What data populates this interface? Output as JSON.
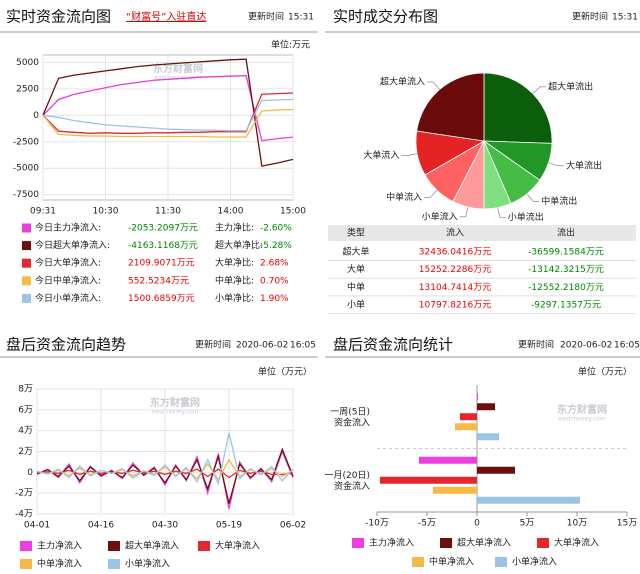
{
  "chart_data": [
    {
      "type": "line",
      "title": "实时资金流向图",
      "link": "“财富号”入驻直达",
      "update_label": "更新时间",
      "update_time": "15:31",
      "unit": "单位:万元",
      "watermark": "东方财富网",
      "watermark_sub": "eastmoney.com",
      "categories": [
        "09:31",
        null,
        null,
        null,
        "10:30",
        null,
        null,
        null,
        "11:30",
        null,
        null,
        null,
        "14:00",
        null,
        null,
        null,
        "15:00"
      ],
      "ylim": [
        -8000,
        5700
      ],
      "yticks": [
        5000,
        2500,
        0,
        -2500,
        -5000,
        -7500
      ],
      "grid": true,
      "series": [
        {
          "name": "今日主力净流入:",
          "color": "#e83fd6",
          "values": [
            0,
            1500,
            2000,
            2300,
            2600,
            2900,
            3100,
            3300,
            3400,
            3500,
            3600,
            3650,
            3700,
            3750,
            -2400,
            -2200,
            -2053
          ]
        },
        {
          "name": "今日超大单净流入:",
          "color": "#6b0f0f",
          "values": [
            0,
            3500,
            3800,
            4000,
            4200,
            4400,
            4600,
            4750,
            4850,
            4950,
            5050,
            5150,
            5250,
            5300,
            -4800,
            -4500,
            -4163
          ]
        },
        {
          "name": "今日大单净流入:",
          "color": "#e4272c",
          "values": [
            0,
            -1500,
            -1600,
            -1700,
            -1650,
            -1700,
            -1700,
            -1650,
            -1650,
            -1600,
            -1600,
            -1550,
            -1550,
            -1550,
            2000,
            2050,
            2109
          ]
        },
        {
          "name": "今日中单净流入:",
          "color": "#f5b945",
          "values": [
            0,
            -1800,
            -1900,
            -1950,
            -1950,
            -2000,
            -2000,
            -2000,
            -2000,
            -2000,
            -2000,
            -2050,
            -2050,
            -2050,
            400,
            500,
            552
          ]
        },
        {
          "name": "今日小单净流入:",
          "color": "#9dc3e6",
          "values": [
            0,
            -200,
            -500,
            -700,
            -900,
            -1000,
            -1100,
            -1200,
            -1300,
            -1350,
            -1400,
            -1400,
            -1450,
            -1450,
            1400,
            1450,
            1500
          ]
        }
      ],
      "summary": [
        {
          "value": "-2053.2097万元",
          "ratio_label": "主力净比:",
          "ratio": "-2.60%"
        },
        {
          "value": "-4163.1168万元",
          "ratio_label": "超大单净比:",
          "ratio": "-5.28%"
        },
        {
          "value": "2109.9071万元",
          "ratio_label": "大单净比:",
          "ratio": "2.68%"
        },
        {
          "value": "552.5234万元",
          "ratio_label": "中单净比:",
          "ratio": "0.70%"
        },
        {
          "value": "1500.6859万元",
          "ratio_label": "小单净比:",
          "ratio": "1.90%"
        }
      ]
    },
    {
      "type": "pie",
      "title": "实时成交分布图",
      "update_label": "更新时间",
      "update_time": "15:31",
      "categories": [
        "超大单流出",
        "大单流出",
        "中单流出",
        "小单流出",
        "小单流入",
        "中单流入",
        "大单流入",
        "超大单流入"
      ],
      "values": [
        36599.1584,
        13142.3215,
        12552.218,
        9297.1357,
        10797.8216,
        13104.7414,
        15252.2286,
        32436.0416
      ],
      "colors": [
        "#0b5e0b",
        "#23962a",
        "#45bd45",
        "#7fe07f",
        "#ff9a9a",
        "#ff6060",
        "#e42424",
        "#6b0a0a"
      ],
      "table": {
        "header": [
          "类型",
          "流入",
          "流出"
        ],
        "rows": [
          [
            "超大单",
            "32436.0416万元",
            "-36599.1584万元"
          ],
          [
            "大单",
            "15252.2286万元",
            "-13142.3215万元"
          ],
          [
            "中单",
            "13104.7414万元",
            "-12552.2180万元"
          ],
          [
            "小单",
            "10797.8216万元",
            "-9297.1357万元"
          ]
        ]
      }
    },
    {
      "type": "line",
      "title": "盘后资金流向趋势",
      "update_label": "更新时间",
      "update_date": "2020-06-02",
      "update_time": "16:05",
      "unit": "单位（万元）",
      "watermark": "东方财富网",
      "watermark_sub": "eastmoney.com",
      "categories": [
        "04-01",
        null,
        null,
        null,
        null,
        null,
        "04-16",
        null,
        null,
        null,
        null,
        null,
        "04-30",
        null,
        null,
        null,
        null,
        null,
        "05-19",
        null,
        null,
        null,
        null,
        null,
        "06-02"
      ],
      "ylim": [
        -40000,
        80000
      ],
      "grid": true,
      "yticks": [
        {
          "value": 80000,
          "label": "8万"
        },
        {
          "value": 60000,
          "label": "6万"
        },
        {
          "value": 40000,
          "label": "4万"
        },
        {
          "value": 20000,
          "label": "2万"
        },
        0,
        {
          "value": -20000,
          "label": "-2万"
        },
        {
          "value": -40000,
          "label": "-4万"
        }
      ],
      "series": [
        {
          "name": "主力净流入",
          "color": "#ef3ee0",
          "values": [
            -2000,
            3000,
            -5000,
            8000,
            -10000,
            6000,
            -4000,
            2000,
            -6000,
            9000,
            -3000,
            5000,
            -12000,
            7000,
            -8000,
            15000,
            -20000,
            18000,
            -35000,
            10000,
            -6000,
            4000,
            -9000,
            20000,
            -5000
          ]
        },
        {
          "name": "超大单净流入",
          "color": "#6b0f0f",
          "values": [
            -1500,
            2500,
            -4000,
            6000,
            -8000,
            5000,
            -3000,
            1500,
            -5000,
            7000,
            -2500,
            4000,
            -10000,
            6000,
            -7000,
            12000,
            -16000,
            15000,
            -30000,
            8000,
            -5000,
            3000,
            -7000,
            22000,
            -4000
          ]
        },
        {
          "name": "大单净流入",
          "color": "#e4272c",
          "values": [
            -500,
            500,
            -1000,
            2000,
            -2000,
            1000,
            -1000,
            500,
            -1000,
            2000,
            -500,
            1000,
            -2000,
            1000,
            -1000,
            3000,
            -4000,
            3000,
            -5000,
            2000,
            -1000,
            1000,
            -2000,
            -2000,
            -1000
          ]
        },
        {
          "name": "中单净流入",
          "color": "#f5b945",
          "values": [
            1000,
            -1500,
            2000,
            -3000,
            4000,
            -2500,
            2000,
            -1000,
            2500,
            -3500,
            1500,
            -2000,
            5000,
            -3000,
            3500,
            -6000,
            8000,
            -7000,
            12000,
            -4000,
            2500,
            -1500,
            3500,
            -4000,
            2000
          ]
        },
        {
          "name": "小单净流入",
          "color": "#9dc3e6",
          "values": [
            1000,
            -1500,
            3000,
            -5000,
            6000,
            -3500,
            2000,
            -1000,
            3500,
            -5500,
            1500,
            -3000,
            7000,
            -4000,
            4500,
            -9000,
            12000,
            -11000,
            38000,
            -6000,
            3500,
            -2500,
            5500,
            -8000,
            3000
          ]
        }
      ]
    },
    {
      "type": "hbar",
      "title": "盘后资金流向统计",
      "update_label": "更新时间",
      "update_date": "2020-06-02",
      "update_time": "16:05",
      "unit": "单位（万元）",
      "watermark": "东方财富网",
      "watermark_sub": "eastmoney.com",
      "categories": [
        [
          "一周(5日)",
          "资金流入"
        ],
        [
          "一月(20日)",
          "资金流入"
        ]
      ],
      "xlim": [
        -100000,
        150000
      ],
      "xticks": [
        {
          "value": -100000,
          "label": "-10万"
        },
        {
          "value": -50000,
          "label": "-5万"
        },
        0,
        {
          "value": 50000,
          "label": "5万"
        },
        {
          "value": 100000,
          "label": "10万"
        },
        {
          "value": 150000,
          "label": "15万"
        }
      ],
      "series": [
        {
          "name": "主力净流入",
          "color": "#ef3ee0",
          "values": [
            1000,
            -58000
          ]
        },
        {
          "name": "超大单净流入",
          "color": "#6b0f0f",
          "values": [
            18000,
            38000
          ]
        },
        {
          "name": "大单净流入",
          "color": "#e4272c",
          "values": [
            -17000,
            -97000
          ]
        },
        {
          "name": "中单净流入",
          "color": "#f5b945",
          "values": [
            -22000,
            -44000
          ]
        },
        {
          "name": "小单净流入",
          "color": "#9dc3e6",
          "values": [
            22000,
            103000
          ]
        }
      ]
    }
  ]
}
